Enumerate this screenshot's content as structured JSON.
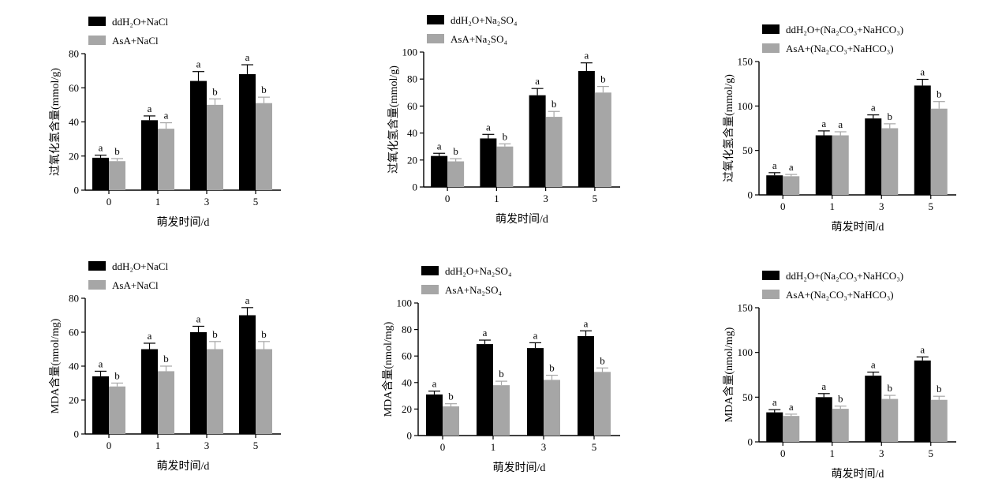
{
  "figure": {
    "background": "#ffffff"
  },
  "colors": {
    "control": "#000000",
    "treatment": "#a6a6a6"
  },
  "chart_data": [
    {
      "type": "bar",
      "categories": [
        "0",
        "1",
        "3",
        "5"
      ],
      "xlabel": "萌发时间/d",
      "ylabel": "过氧化氢含量(mmol/g)",
      "ylim": [
        0,
        80
      ],
      "yticks": [
        0,
        20,
        40,
        60,
        80
      ],
      "legend_position": "top-left",
      "series": [
        {
          "name": "ddH₂O+NaCl",
          "values": [
            19,
            41,
            64,
            68
          ],
          "errors": [
            1.5,
            2.5,
            5.5,
            5.5
          ],
          "letters": [
            "a",
            "a",
            "a",
            "a"
          ]
        },
        {
          "name": "AsA+NaCl",
          "values": [
            17,
            36,
            50,
            51
          ],
          "errors": [
            1.5,
            3.5,
            3.5,
            3.5
          ],
          "letters": [
            "b",
            "a",
            "b",
            "b"
          ]
        }
      ]
    },
    {
      "type": "bar",
      "categories": [
        "0",
        "1",
        "3",
        "5"
      ],
      "xlabel": "萌发时间/d",
      "ylabel": "过氧化氢含量(mmol/g)",
      "ylim": [
        0,
        100
      ],
      "yticks": [
        0,
        20,
        40,
        60,
        80,
        100
      ],
      "legend_position": "top-left",
      "series": [
        {
          "name": "ddH₂O+Na₂SO₄",
          "values": [
            23,
            36,
            68,
            86
          ],
          "errors": [
            2,
            3,
            5,
            6
          ],
          "letters": [
            "a",
            "a",
            "a",
            "a"
          ]
        },
        {
          "name": "AsA+Na₂SO₄",
          "values": [
            19,
            30,
            52,
            70
          ],
          "errors": [
            2,
            2,
            4,
            4.5
          ],
          "letters": [
            "b",
            "b",
            "b",
            "b"
          ]
        }
      ]
    },
    {
      "type": "bar",
      "categories": [
        "0",
        "1",
        "3",
        "5"
      ],
      "xlabel": "萌发时间/d",
      "ylabel": "过氧化氢含量(mmol/g)",
      "ylim": [
        0,
        150
      ],
      "yticks": [
        0,
        50,
        100,
        150
      ],
      "legend_position": "top-left",
      "series": [
        {
          "name": "ddH₂O+(Na₂CO₃+NaHCO₃)",
          "values": [
            22,
            67,
            86,
            123
          ],
          "errors": [
            3,
            5,
            4,
            7
          ],
          "letters": [
            "a",
            "a",
            "a",
            "a"
          ]
        },
        {
          "name": "AsA+(Na₂CO₃+NaHCO₃)",
          "values": [
            21,
            67,
            75,
            97
          ],
          "errors": [
            2,
            4,
            5,
            8
          ],
          "letters": [
            "a",
            "a",
            "b",
            "b"
          ]
        }
      ]
    },
    {
      "type": "bar",
      "categories": [
        "0",
        "1",
        "3",
        "5"
      ],
      "xlabel": "萌发时间/d",
      "ylabel": "MDA含量(nmol/mg)",
      "ylim": [
        0,
        80
      ],
      "yticks": [
        0,
        20,
        40,
        60,
        80
      ],
      "legend_position": "top-left",
      "series": [
        {
          "name": "ddH₂O+NaCl",
          "values": [
            34,
            50,
            60,
            70
          ],
          "errors": [
            3,
            3.5,
            3.5,
            4.5
          ],
          "letters": [
            "a",
            "a",
            "a",
            "a"
          ]
        },
        {
          "name": "AsA+NaCl",
          "values": [
            28,
            37,
            50,
            50
          ],
          "errors": [
            2,
            3,
            4.5,
            4.5
          ],
          "letters": [
            "b",
            "b",
            "b",
            "b"
          ]
        }
      ]
    },
    {
      "type": "bar",
      "categories": [
        "0",
        "1",
        "3",
        "5"
      ],
      "xlabel": "萌发时间/d",
      "ylabel": "MDA含量(nmol/mg)",
      "ylim": [
        0,
        100
      ],
      "yticks": [
        0,
        20,
        40,
        60,
        80,
        100
      ],
      "legend_position": "top-left",
      "series": [
        {
          "name": "ddH₂O+Na₂SO₄",
          "values": [
            31,
            69,
            66,
            75
          ],
          "errors": [
            2.5,
            3,
            4,
            4
          ],
          "letters": [
            "a",
            "a",
            "a",
            "a"
          ]
        },
        {
          "name": "AsA+Na₂SO₄",
          "values": [
            22,
            38,
            42,
            48
          ],
          "errors": [
            2,
            3,
            3.5,
            3
          ],
          "letters": [
            "b",
            "b",
            "b",
            "b"
          ]
        }
      ]
    },
    {
      "type": "bar",
      "categories": [
        "0",
        "1",
        "3",
        "5"
      ],
      "xlabel": "萌发时间/d",
      "ylabel": "MDA含量(nmol/mg)",
      "ylim": [
        0,
        150
      ],
      "yticks": [
        0,
        50,
        100,
        150
      ],
      "legend_position": "top-left",
      "series": [
        {
          "name": "ddH₂O+(Na₂CO₃+NaHCO₃)",
          "values": [
            33,
            50,
            74,
            91
          ],
          "errors": [
            3,
            4,
            4,
            4
          ],
          "letters": [
            "a",
            "a",
            "a",
            "a"
          ]
        },
        {
          "name": "AsA+(Na₂CO₃+NaHCO₃)",
          "values": [
            29,
            37,
            48,
            47
          ],
          "errors": [
            2,
            3,
            4,
            4
          ],
          "letters": [
            "a",
            "b",
            "b",
            "b"
          ]
        }
      ]
    }
  ]
}
